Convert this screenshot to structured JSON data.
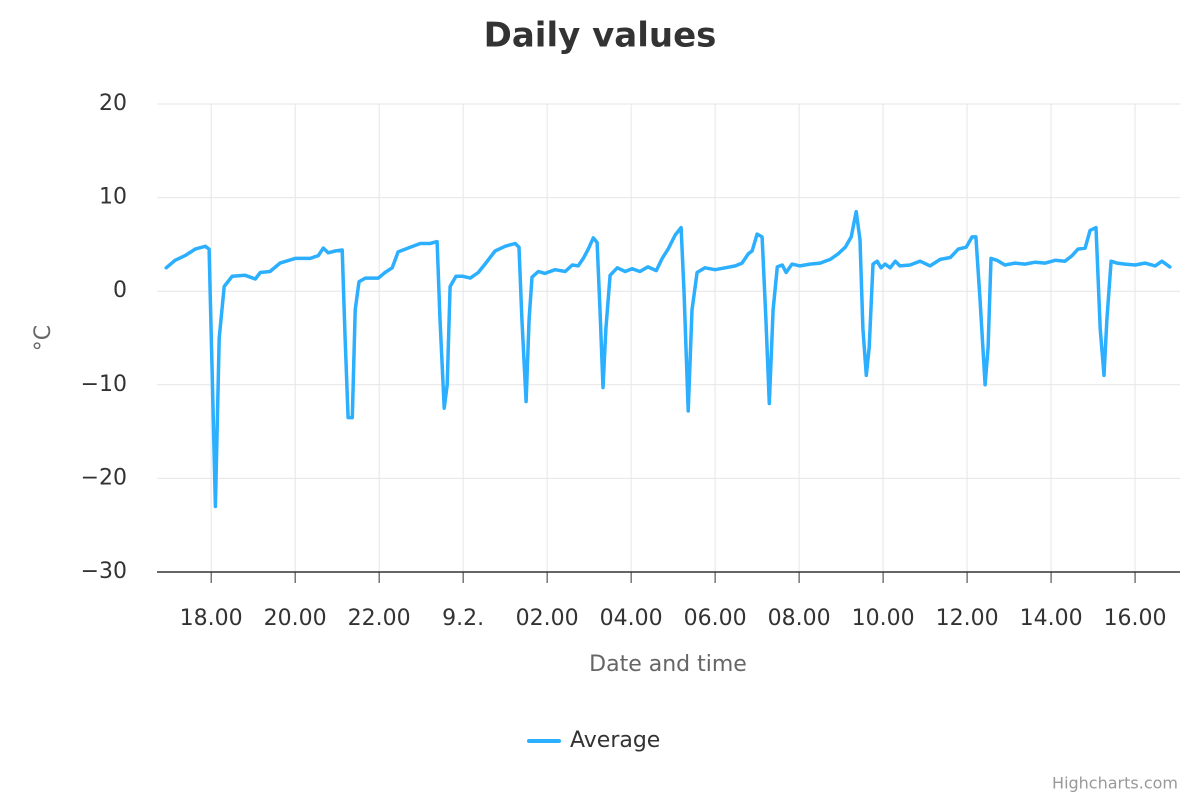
{
  "chart_data": {
    "type": "line",
    "title": "Daily values",
    "x_label": "Date and time",
    "y_label": "°C",
    "credits": "Highcharts.com",
    "grid": true,
    "legend": "bottom",
    "xlim": [
      16.71,
      41.07
    ],
    "xticks": [
      {
        "value": 18,
        "label": "18.00"
      },
      {
        "value": 20,
        "label": "20.00"
      },
      {
        "value": 22,
        "label": "22.00"
      },
      {
        "value": 24,
        "label": "9.2."
      },
      {
        "value": 26,
        "label": "02.00"
      },
      {
        "value": 28,
        "label": "04.00"
      },
      {
        "value": 30,
        "label": "06.00"
      },
      {
        "value": 32,
        "label": "08.00"
      },
      {
        "value": 34,
        "label": "10.00"
      },
      {
        "value": 36,
        "label": "12.00"
      },
      {
        "value": 38,
        "label": "14.00"
      },
      {
        "value": 40,
        "label": "16.00"
      }
    ],
    "ylim": [
      -30,
      20
    ],
    "yticks": [
      {
        "value": -30,
        "label": "−30"
      },
      {
        "value": -20,
        "label": "−20"
      },
      {
        "value": -10,
        "label": "−10"
      },
      0,
      10,
      20
    ],
    "x": [
      16.93,
      17.14,
      17.38,
      17.62,
      17.86,
      17.95,
      18.02,
      18.1,
      18.19,
      18.31,
      18.5,
      18.81,
      19.05,
      19.17,
      19.4,
      19.64,
      20,
      20.36,
      20.55,
      20.67,
      20.79,
      20.95,
      21.12,
      21.19,
      21.26,
      21.36,
      21.43,
      21.52,
      21.67,
      21.98,
      22.14,
      22.31,
      22.45,
      22.74,
      22.98,
      23.21,
      23.38,
      23.45,
      23.55,
      23.62,
      23.69,
      23.83,
      23.98,
      24.17,
      24.36,
      24.52,
      24.76,
      25,
      25.24,
      25.33,
      25.4,
      25.5,
      25.57,
      25.64,
      25.79,
      25.95,
      26.19,
      26.43,
      26.6,
      26.74,
      26.86,
      26.98,
      27.1,
      27.19,
      27.26,
      27.33,
      27.4,
      27.5,
      27.67,
      27.86,
      28.02,
      28.21,
      28.4,
      28.6,
      28.74,
      28.88,
      29.05,
      29.19,
      29.26,
      29.36,
      29.45,
      29.57,
      29.76,
      30,
      30.24,
      30.48,
      30.64,
      30.79,
      30.88,
      31,
      31.12,
      31.21,
      31.29,
      31.38,
      31.48,
      31.6,
      31.69,
      31.83,
      32.02,
      32.26,
      32.5,
      32.74,
      32.93,
      33.1,
      33.24,
      33.36,
      33.45,
      33.52,
      33.6,
      33.67,
      33.76,
      33.86,
      33.95,
      34.05,
      34.17,
      34.29,
      34.4,
      34.64,
      34.88,
      35.12,
      35.36,
      35.6,
      35.79,
      35.98,
      36.12,
      36.21,
      36.31,
      36.43,
      36.5,
      36.57,
      36.71,
      36.9,
      37.14,
      37.38,
      37.62,
      37.86,
      38.1,
      38.33,
      38.5,
      38.64,
      38.81,
      38.93,
      39.07,
      39.17,
      39.26,
      39.33,
      39.43,
      39.57,
      39.76,
      40,
      40.24,
      40.48,
      40.64,
      40.83
    ],
    "series": [
      {
        "name": "Average",
        "color": "#2caffe",
        "values": [
          2.5,
          3.3,
          3.8,
          4.5,
          4.8,
          4.5,
          -8,
          -23,
          -5,
          0.5,
          1.6,
          1.7,
          1.3,
          2.0,
          2.1,
          3.0,
          3.5,
          3.5,
          3.8,
          4.6,
          4.1,
          4.3,
          4.4,
          -5,
          -13.5,
          -13.5,
          -2,
          1.0,
          1.4,
          1.4,
          2.0,
          2.5,
          4.2,
          4.7,
          5.1,
          5.1,
          5.3,
          -3,
          -12.5,
          -10,
          0.5,
          1.6,
          1.6,
          1.4,
          2.0,
          2.9,
          4.3,
          4.8,
          5.1,
          4.7,
          -3,
          -11.8,
          -3,
          1.5,
          2.1,
          1.9,
          2.3,
          2.1,
          2.8,
          2.7,
          3.5,
          4.5,
          5.7,
          5.2,
          -2,
          -10.3,
          -4,
          1.7,
          2.5,
          2.1,
          2.4,
          2.1,
          2.6,
          2.2,
          3.5,
          4.5,
          6.0,
          6.8,
          0,
          -12.8,
          -2,
          2.0,
          2.5,
          2.3,
          2.5,
          2.7,
          3.0,
          4.0,
          4.3,
          6.1,
          5.8,
          -3,
          -12,
          -2,
          2.6,
          2.8,
          2.0,
          2.9,
          2.7,
          2.9,
          3.0,
          3.4,
          4.0,
          4.7,
          5.8,
          8.5,
          5.5,
          -4,
          -9,
          -6,
          2.9,
          3.2,
          2.5,
          2.9,
          2.5,
          3.2,
          2.7,
          2.8,
          3.2,
          2.7,
          3.4,
          3.6,
          4.5,
          4.7,
          5.8,
          5.8,
          -1,
          -10,
          -6,
          3.5,
          3.3,
          2.8,
          3.0,
          2.9,
          3.1,
          3.0,
          3.3,
          3.2,
          3.8,
          4.5,
          4.6,
          6.5,
          6.8,
          -4,
          -9,
          -3,
          3.2,
          3.0,
          2.9,
          2.8,
          3.0,
          2.7,
          3.2,
          2.6
        ]
      }
    ]
  }
}
